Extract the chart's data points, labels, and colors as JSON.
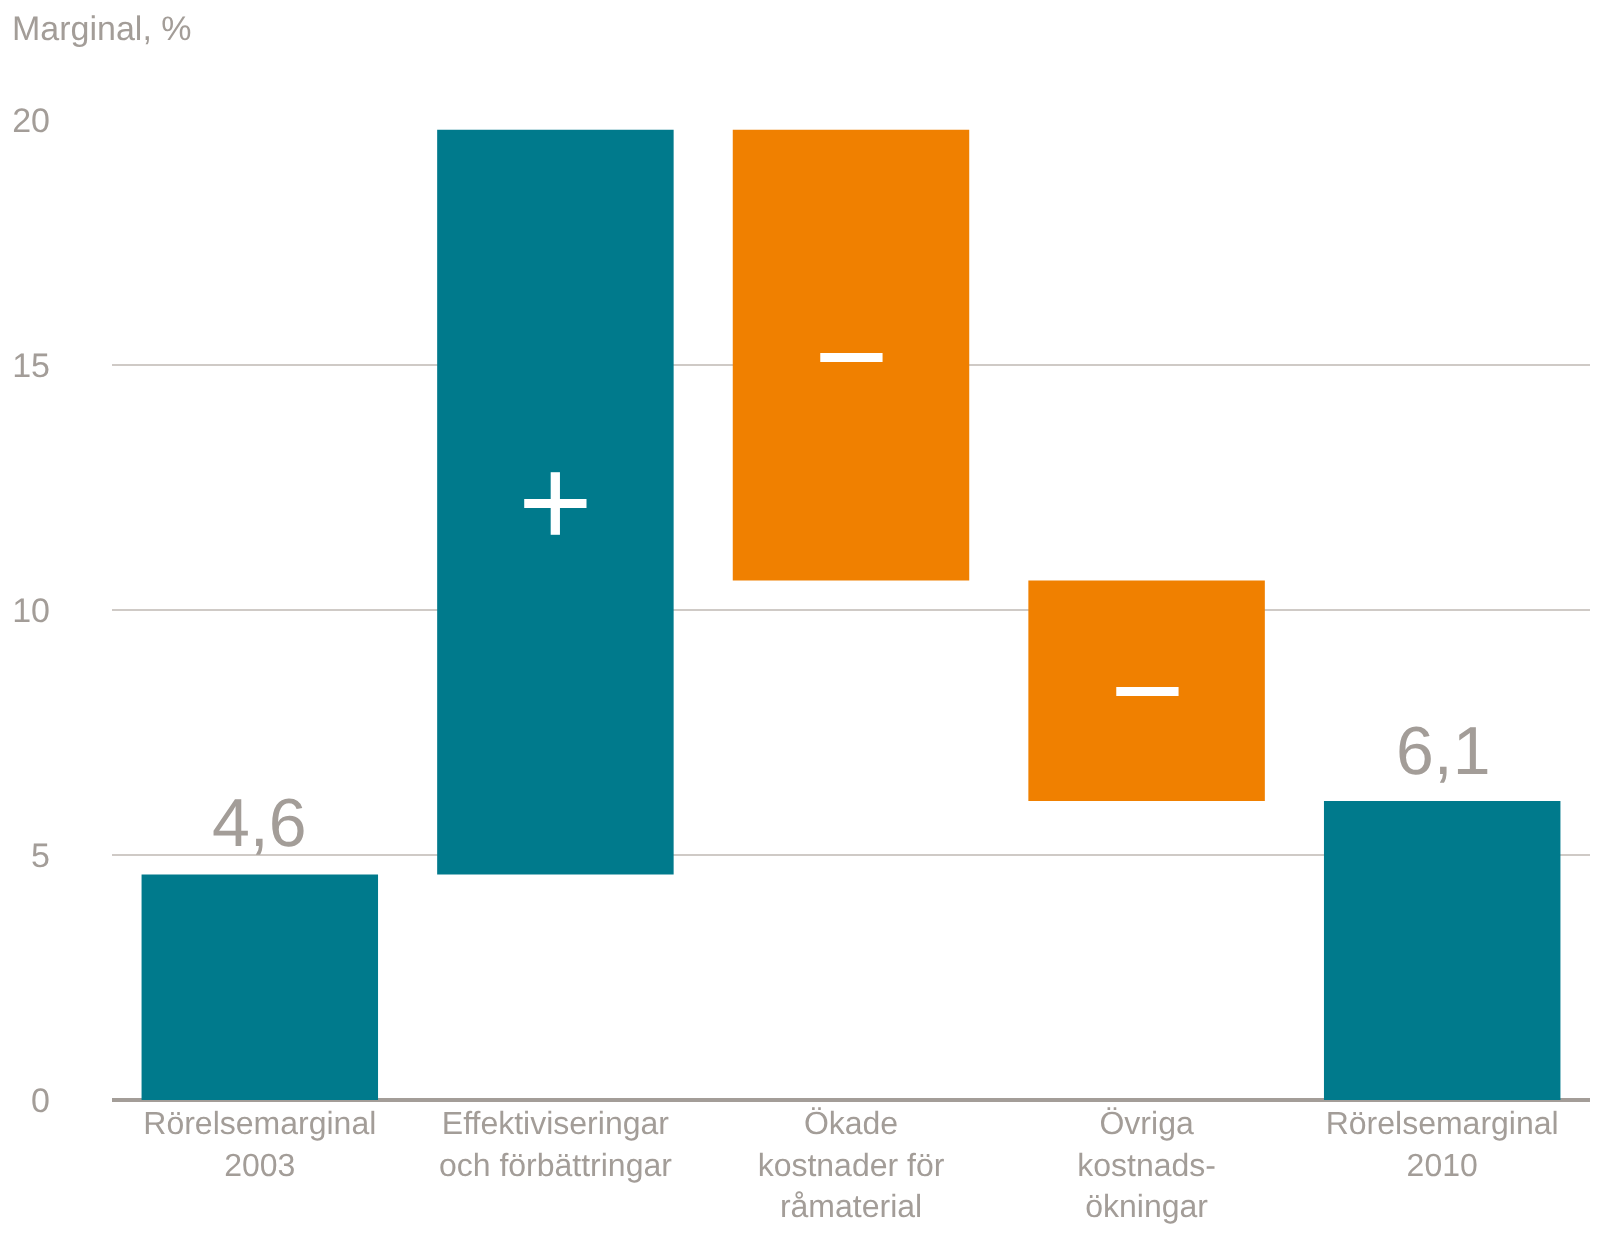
{
  "chart_data": {
    "type": "bar",
    "ylabel": "Marginal, %",
    "categories": [
      "Rörelsemarginal\n2003",
      "Effektiviseringar\noch förbättringar",
      "Ökade\nkostnader för\nråmaterial",
      "Övriga\nkostnads-\nökningar",
      "Rörelsemarginal\n2010"
    ],
    "values": [
      4.6,
      15.2,
      9.2,
      4.5,
      6.1
    ],
    "base": [
      0,
      4.6,
      10.6,
      6.1,
      0
    ],
    "colors": [
      "#007a8c",
      "#007a8c",
      "#f08000",
      "#f08000",
      "#007a8c"
    ],
    "value_labels": [
      "4,6",
      null,
      null,
      null,
      "6,1"
    ],
    "annotations": [
      "+",
      "−",
      "−"
    ],
    "ylim": [
      0,
      20
    ],
    "yticks": [
      0,
      5,
      10,
      15,
      20
    ],
    "grid": "y"
  }
}
